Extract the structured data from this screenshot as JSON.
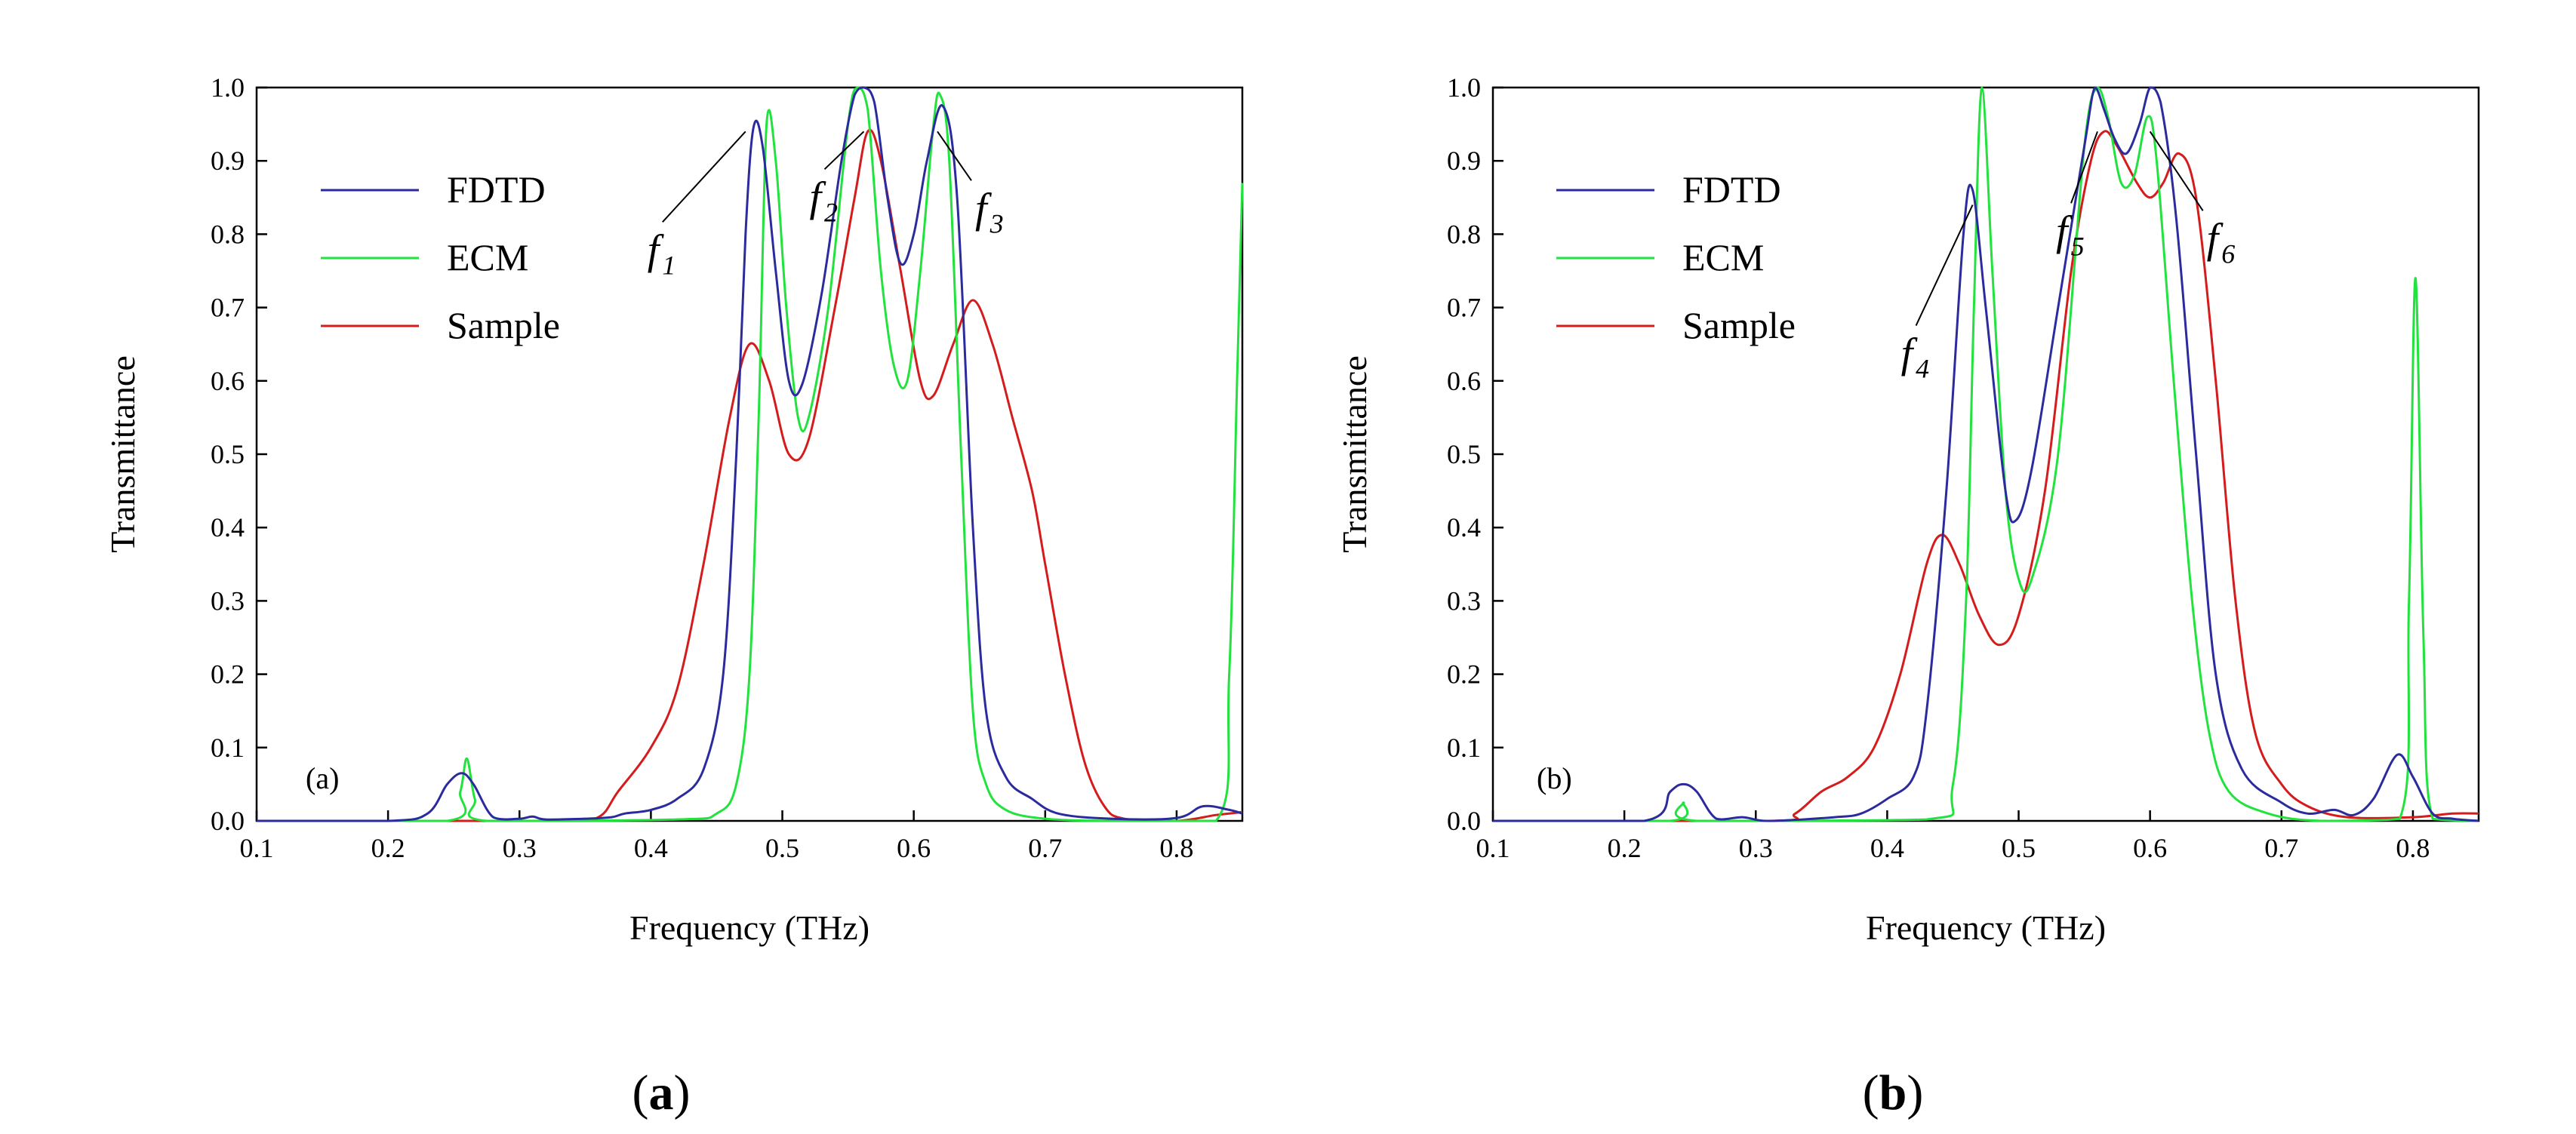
{
  "chart_data": [
    {
      "type": "line",
      "panel_label": "(a)",
      "caption": "a",
      "xlabel": "Frequency (THz)",
      "ylabel": "Transmittance",
      "xlim": [
        0.1,
        0.85
      ],
      "ylim": [
        0.0,
        1.0
      ],
      "xticks": [
        "0.1",
        "0.2",
        "0.3",
        "0.4",
        "0.5",
        "0.6",
        "0.7",
        "0.8"
      ],
      "yticks": [
        "0.0",
        "0.1",
        "0.2",
        "0.3",
        "0.4",
        "0.5",
        "0.6",
        "0.7",
        "0.8",
        "0.9",
        "1.0"
      ],
      "legend_position": "upper-left",
      "series": [
        {
          "name": "FDTD",
          "color": "#2b2b9e",
          "points": [
            [
              0.1,
              0.0
            ],
            [
              0.2,
              0.0
            ],
            [
              0.23,
              0.01
            ],
            [
              0.245,
              0.05
            ],
            [
              0.256,
              0.065
            ],
            [
              0.265,
              0.05
            ],
            [
              0.28,
              0.005
            ],
            [
              0.3,
              0.003
            ],
            [
              0.31,
              0.006
            ],
            [
              0.32,
              0.002
            ],
            [
              0.35,
              0.003
            ],
            [
              0.37,
              0.005
            ],
            [
              0.38,
              0.01
            ],
            [
              0.4,
              0.015
            ],
            [
              0.42,
              0.03
            ],
            [
              0.44,
              0.07
            ],
            [
              0.455,
              0.2
            ],
            [
              0.465,
              0.5
            ],
            [
              0.472,
              0.8
            ],
            [
              0.478,
              0.945
            ],
            [
              0.485,
              0.92
            ],
            [
              0.495,
              0.75
            ],
            [
              0.505,
              0.6
            ],
            [
              0.515,
              0.595
            ],
            [
              0.53,
              0.72
            ],
            [
              0.545,
              0.9
            ],
            [
              0.555,
              0.99
            ],
            [
              0.562,
              1.0
            ],
            [
              0.57,
              0.98
            ],
            [
              0.58,
              0.85
            ],
            [
              0.59,
              0.76
            ],
            [
              0.6,
              0.8
            ],
            [
              0.61,
              0.9
            ],
            [
              0.622,
              0.975
            ],
            [
              0.633,
              0.85
            ],
            [
              0.645,
              0.4
            ],
            [
              0.655,
              0.15
            ],
            [
              0.67,
              0.06
            ],
            [
              0.69,
              0.03
            ],
            [
              0.71,
              0.01
            ],
            [
              0.75,
              0.003
            ],
            [
              0.8,
              0.004
            ],
            [
              0.82,
              0.02
            ],
            [
              0.84,
              0.015
            ],
            [
              0.85,
              0.01
            ]
          ]
        },
        {
          "name": "ECM",
          "color": "#22e23e",
          "points": [
            [
              0.1,
              0.0
            ],
            [
              0.245,
              0.0
            ],
            [
              0.255,
              0.04
            ],
            [
              0.26,
              0.085
            ],
            [
              0.266,
              0.03
            ],
            [
              0.275,
              0.0
            ],
            [
              0.42,
              0.002
            ],
            [
              0.45,
              0.01
            ],
            [
              0.465,
              0.05
            ],
            [
              0.475,
              0.2
            ],
            [
              0.482,
              0.55
            ],
            [
              0.488,
              0.95
            ],
            [
              0.495,
              0.9
            ],
            [
              0.503,
              0.7
            ],
            [
              0.512,
              0.55
            ],
            [
              0.52,
              0.55
            ],
            [
              0.535,
              0.7
            ],
            [
              0.55,
              0.95
            ],
            [
              0.557,
              1.0
            ],
            [
              0.565,
              0.97
            ],
            [
              0.575,
              0.75
            ],
            [
              0.585,
              0.62
            ],
            [
              0.595,
              0.6
            ],
            [
              0.605,
              0.75
            ],
            [
              0.615,
              0.95
            ],
            [
              0.62,
              0.99
            ],
            [
              0.627,
              0.9
            ],
            [
              0.636,
              0.5
            ],
            [
              0.645,
              0.15
            ],
            [
              0.655,
              0.05
            ],
            [
              0.67,
              0.015
            ],
            [
              0.7,
              0.003
            ],
            [
              0.75,
              0.0
            ],
            [
              0.83,
              0.0
            ],
            [
              0.84,
              0.2
            ],
            [
              0.846,
              0.6
            ],
            [
              0.85,
              0.87
            ]
          ]
        },
        {
          "name": "Sample",
          "color": "#d41c1c",
          "points": [
            [
              0.1,
              0.0
            ],
            [
              0.33,
              0.0
            ],
            [
              0.36,
              0.005
            ],
            [
              0.375,
              0.04
            ],
            [
              0.4,
              0.1
            ],
            [
              0.42,
              0.18
            ],
            [
              0.44,
              0.35
            ],
            [
              0.46,
              0.55
            ],
            [
              0.475,
              0.65
            ],
            [
              0.49,
              0.6
            ],
            [
              0.505,
              0.5
            ],
            [
              0.52,
              0.52
            ],
            [
              0.54,
              0.7
            ],
            [
              0.555,
              0.85
            ],
            [
              0.565,
              0.94
            ],
            [
              0.575,
              0.9
            ],
            [
              0.59,
              0.75
            ],
            [
              0.605,
              0.6
            ],
            [
              0.615,
              0.58
            ],
            [
              0.63,
              0.65
            ],
            [
              0.645,
              0.71
            ],
            [
              0.66,
              0.65
            ],
            [
              0.675,
              0.55
            ],
            [
              0.69,
              0.45
            ],
            [
              0.7,
              0.35
            ],
            [
              0.715,
              0.2
            ],
            [
              0.73,
              0.08
            ],
            [
              0.745,
              0.02
            ],
            [
              0.76,
              0.003
            ],
            [
              0.8,
              0.0
            ],
            [
              0.83,
              0.008
            ],
            [
              0.85,
              0.012
            ]
          ]
        }
      ],
      "annotations": [
        {
          "symbol": "f",
          "sub": "1",
          "x": 0.472,
          "y": 0.94
        },
        {
          "symbol": "f",
          "sub": "2",
          "x": 0.562,
          "y": 0.94
        },
        {
          "symbol": "f",
          "sub": "3",
          "x": 0.618,
          "y": 0.94
        }
      ]
    },
    {
      "type": "line",
      "panel_label": "(b)",
      "caption": "b",
      "xlabel": "Frequency (THz)",
      "ylabel": "Transmittance",
      "xlim": [
        0.1,
        0.85
      ],
      "ylim": [
        0.0,
        1.0
      ],
      "xticks": [
        "0.1",
        "0.2",
        "0.3",
        "0.4",
        "0.5",
        "0.6",
        "0.7",
        "0.8"
      ],
      "yticks": [
        "0.0",
        "0.1",
        "0.2",
        "0.3",
        "0.4",
        "0.5",
        "0.6",
        "0.7",
        "0.8",
        "0.9",
        "1.0"
      ],
      "legend_position": "upper-left",
      "series": [
        {
          "name": "FDTD",
          "color": "#2b2b9e",
          "points": [
            [
              0.1,
              0.0
            ],
            [
              0.215,
              0.0
            ],
            [
              0.235,
              0.04
            ],
            [
              0.245,
              0.05
            ],
            [
              0.255,
              0.04
            ],
            [
              0.27,
              0.003
            ],
            [
              0.29,
              0.005
            ],
            [
              0.31,
              0.0
            ],
            [
              0.36,
              0.005
            ],
            [
              0.38,
              0.01
            ],
            [
              0.4,
              0.03
            ],
            [
              0.42,
              0.06
            ],
            [
              0.43,
              0.15
            ],
            [
              0.445,
              0.45
            ],
            [
              0.458,
              0.8
            ],
            [
              0.465,
              0.86
            ],
            [
              0.475,
              0.7
            ],
            [
              0.49,
              0.45
            ],
            [
              0.498,
              0.41
            ],
            [
              0.51,
              0.48
            ],
            [
              0.53,
              0.7
            ],
            [
              0.55,
              0.92
            ],
            [
              0.558,
              1.0
            ],
            [
              0.565,
              0.97
            ],
            [
              0.573,
              0.93
            ],
            [
              0.582,
              0.91
            ],
            [
              0.592,
              0.95
            ],
            [
              0.6,
              1.0
            ],
            [
              0.608,
              0.98
            ],
            [
              0.62,
              0.82
            ],
            [
              0.635,
              0.5
            ],
            [
              0.65,
              0.2
            ],
            [
              0.67,
              0.07
            ],
            [
              0.7,
              0.025
            ],
            [
              0.72,
              0.01
            ],
            [
              0.74,
              0.015
            ],
            [
              0.755,
              0.008
            ],
            [
              0.77,
              0.03
            ],
            [
              0.788,
              0.09
            ],
            [
              0.8,
              0.06
            ],
            [
              0.815,
              0.01
            ],
            [
              0.83,
              0.003
            ],
            [
              0.85,
              0.0
            ]
          ]
        },
        {
          "name": "ECM",
          "color": "#22e23e",
          "points": [
            [
              0.1,
              0.0
            ],
            [
              0.235,
              0.0
            ],
            [
              0.245,
              0.025
            ],
            [
              0.255,
              0.0
            ],
            [
              0.43,
              0.002
            ],
            [
              0.45,
              0.05
            ],
            [
              0.46,
              0.3
            ],
            [
              0.466,
              0.7
            ],
            [
              0.472,
              1.0
            ],
            [
              0.48,
              0.75
            ],
            [
              0.49,
              0.45
            ],
            [
              0.5,
              0.33
            ],
            [
              0.51,
              0.33
            ],
            [
              0.53,
              0.5
            ],
            [
              0.55,
              0.92
            ],
            [
              0.56,
              1.0
            ],
            [
              0.568,
              0.96
            ],
            [
              0.578,
              0.87
            ],
            [
              0.588,
              0.88
            ],
            [
              0.598,
              0.96
            ],
            [
              0.605,
              0.9
            ],
            [
              0.618,
              0.6
            ],
            [
              0.632,
              0.3
            ],
            [
              0.645,
              0.12
            ],
            [
              0.66,
              0.04
            ],
            [
              0.69,
              0.01
            ],
            [
              0.73,
              0.0
            ],
            [
              0.79,
              0.003
            ],
            [
              0.797,
              0.3
            ],
            [
              0.802,
              0.74
            ],
            [
              0.808,
              0.25
            ],
            [
              0.815,
              0.003
            ],
            [
              0.85,
              0.0
            ]
          ]
        },
        {
          "name": "Sample",
          "color": "#d41c1c",
          "points": [
            [
              0.1,
              0.0
            ],
            [
              0.31,
              0.0
            ],
            [
              0.33,
              0.01
            ],
            [
              0.35,
              0.04
            ],
            [
              0.37,
              0.06
            ],
            [
              0.39,
              0.1
            ],
            [
              0.41,
              0.2
            ],
            [
              0.43,
              0.35
            ],
            [
              0.442,
              0.39
            ],
            [
              0.455,
              0.35
            ],
            [
              0.47,
              0.28
            ],
            [
              0.485,
              0.24
            ],
            [
              0.5,
              0.28
            ],
            [
              0.52,
              0.45
            ],
            [
              0.54,
              0.75
            ],
            [
              0.555,
              0.9
            ],
            [
              0.565,
              0.94
            ],
            [
              0.575,
              0.92
            ],
            [
              0.59,
              0.87
            ],
            [
              0.6,
              0.85
            ],
            [
              0.61,
              0.87
            ],
            [
              0.622,
              0.91
            ],
            [
              0.635,
              0.85
            ],
            [
              0.65,
              0.6
            ],
            [
              0.665,
              0.3
            ],
            [
              0.68,
              0.12
            ],
            [
              0.7,
              0.05
            ],
            [
              0.72,
              0.02
            ],
            [
              0.75,
              0.005
            ],
            [
              0.8,
              0.005
            ],
            [
              0.83,
              0.01
            ],
            [
              0.85,
              0.01
            ]
          ]
        }
      ],
      "annotations": [
        {
          "symbol": "f",
          "sub": "4",
          "x": 0.465,
          "y": 0.84
        },
        {
          "symbol": "f",
          "sub": "5",
          "x": 0.56,
          "y": 0.94
        },
        {
          "symbol": "f",
          "sub": "6",
          "x": 0.6,
          "y": 0.94
        }
      ]
    }
  ]
}
